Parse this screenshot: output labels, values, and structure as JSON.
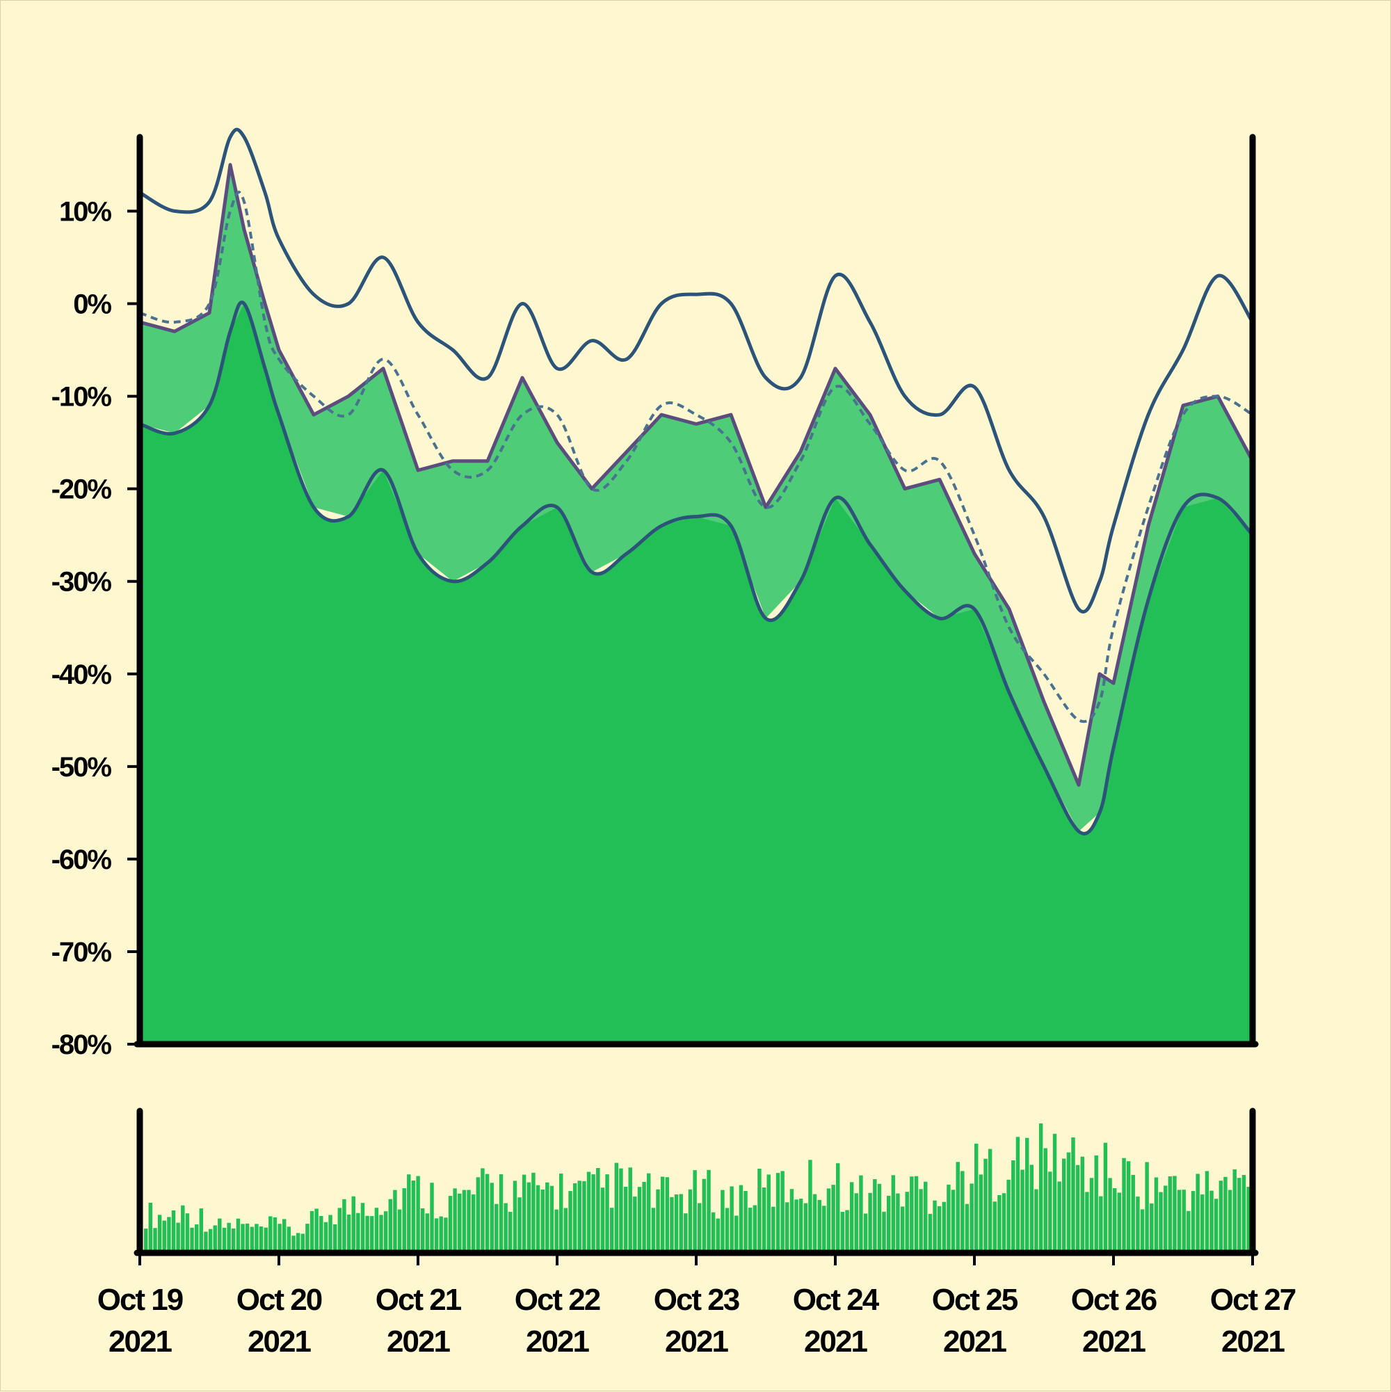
{
  "chart_data": {
    "type": "area",
    "x_range": [
      "2021-10-19",
      "2021-10-27"
    ],
    "ylim": [
      -80,
      18
    ],
    "y_ticks": [
      "10%",
      "0%",
      "-10%",
      "-20%",
      "-30%",
      "-40%",
      "-50%",
      "-60%",
      "-70%",
      "-80%"
    ],
    "y_tick_values": [
      10,
      0,
      -10,
      -20,
      -30,
      -40,
      -50,
      -60,
      -70,
      -80
    ],
    "x_ticks": [
      {
        "line1": "Oct 19",
        "line2": "2021"
      },
      {
        "line1": "Oct 20",
        "line2": "2021"
      },
      {
        "line1": "Oct 21",
        "line2": "2021"
      },
      {
        "line1": "Oct 22",
        "line2": "2021"
      },
      {
        "line1": "Oct 23",
        "line2": "2021"
      },
      {
        "line1": "Oct 24",
        "line2": "2021"
      },
      {
        "line1": "Oct 25",
        "line2": "2021"
      },
      {
        "line1": "Oct 26",
        "line2": "2021"
      },
      {
        "line1": "Oct 27",
        "line2": "2021"
      }
    ],
    "x_days": [
      0,
      0.25,
      0.5,
      0.65,
      0.75,
      0.9,
      1.0,
      1.25,
      1.5,
      1.75,
      2.0,
      2.25,
      2.5,
      2.75,
      3.0,
      3.25,
      3.5,
      3.75,
      4.0,
      4.25,
      4.5,
      4.75,
      5.0,
      5.25,
      5.5,
      5.75,
      6.0,
      6.25,
      6.5,
      6.75,
      6.9,
      7.0,
      7.25,
      7.5,
      7.75,
      8.0
    ],
    "series": [
      {
        "role": "upper-band",
        "values": [
          12,
          10,
          11,
          18,
          18,
          12,
          7,
          1,
          0,
          5,
          -2,
          -5,
          -8,
          0,
          -7,
          -4,
          -6,
          0,
          1,
          0,
          -8,
          -8,
          3,
          -2,
          -10,
          -12,
          -9,
          -18,
          -23,
          -33,
          -30,
          -24,
          -12,
          -5,
          3,
          -2
        ]
      },
      {
        "role": "price",
        "values": [
          -2,
          -3,
          -1,
          15,
          8,
          0,
          -5,
          -12,
          -10,
          -7,
          -18,
          -17,
          -17,
          -8,
          -15,
          -20,
          -16,
          -12,
          -13,
          -12,
          -22,
          -16,
          -7,
          -12,
          -20,
          -19,
          -27,
          -33,
          -43,
          -52,
          -40,
          -41,
          -24,
          -11,
          -10,
          -17
        ]
      },
      {
        "role": "moving-average",
        "values": [
          -1,
          -2,
          0,
          10,
          11,
          -2,
          -6,
          -10,
          -12,
          -6,
          -12,
          -18,
          -18,
          -12,
          -12,
          -20,
          -17,
          -11,
          -12,
          -15,
          -22,
          -17,
          -9,
          -13,
          -18,
          -17,
          -25,
          -35,
          -40,
          -45,
          -43,
          -35,
          -22,
          -12,
          -10,
          -12
        ]
      },
      {
        "role": "lower-band",
        "values": [
          -13,
          -14,
          -11,
          -3,
          0,
          -7,
          -12,
          -22,
          -23,
          -18,
          -27,
          -30,
          -28,
          -24,
          -22,
          -29,
          -27,
          -24,
          -23,
          -24,
          -34,
          -30,
          -21,
          -26,
          -31,
          -34,
          -33,
          -42,
          -50,
          -57,
          -55,
          -48,
          -32,
          -22,
          -21,
          -25
        ]
      }
    ],
    "volume_values": [
      22,
      20,
      24,
      20,
      14,
      16,
      12,
      16,
      10,
      18,
      24,
      26,
      30,
      32,
      38,
      34,
      30,
      32,
      36,
      40,
      34,
      36,
      38,
      34,
      36,
      40,
      38,
      34,
      32,
      34,
      36,
      30,
      34,
      36,
      38,
      40,
      42,
      40,
      34,
      36,
      34,
      38,
      36,
      40,
      46,
      48,
      52,
      54,
      56,
      58,
      52,
      48,
      46,
      42,
      40,
      38,
      36,
      38,
      40,
      42
    ],
    "colors": {
      "background": "#fff7cf",
      "area_main": "#21bf56",
      "area_light": "#4ecc77",
      "band_line": "#2c5478",
      "price_line": "#5b4d7e",
      "ma_line": "#4a7190",
      "axis": "#000000"
    },
    "grid": false,
    "legend": "none"
  },
  "y_tick_labels": [
    "10%",
    "0%",
    "-10%",
    "-20%",
    "-30%",
    "-40%",
    "-50%",
    "-60%",
    "-70%",
    "-80%"
  ],
  "x_tick_labels": [
    {
      "line1": "Oct 19",
      "line2": "2021"
    },
    {
      "line1": "Oct 20",
      "line2": "2021"
    },
    {
      "line1": "Oct 21",
      "line2": "2021"
    },
    {
      "line1": "Oct 22",
      "line2": "2021"
    },
    {
      "line1": "Oct 23",
      "line2": "2021"
    },
    {
      "line1": "Oct 24",
      "line2": "2021"
    },
    {
      "line1": "Oct 25",
      "line2": "2021"
    },
    {
      "line1": "Oct 26",
      "line2": "2021"
    },
    {
      "line1": "Oct 27",
      "line2": "2021"
    }
  ]
}
